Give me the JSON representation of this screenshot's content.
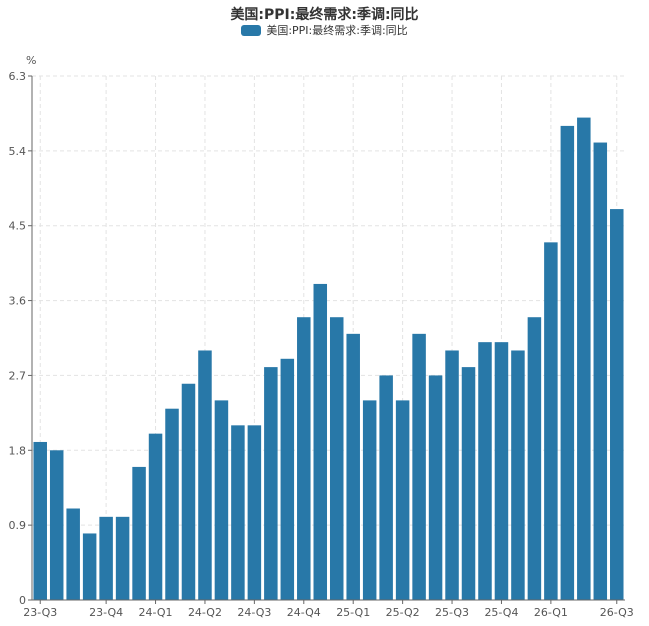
{
  "chart_data": {
    "type": "bar",
    "title": "美国:PPI:最终需求:季调:同比",
    "ylabel": "%",
    "ylim": [
      0,
      6.3
    ],
    "y_ticks": [
      "0",
      "0.9",
      "1.8",
      "2.7",
      "3.6",
      "4.5",
      "5.4",
      "6.3"
    ],
    "x_tick_labels": [
      {
        "index": 0,
        "label": "23-Q3"
      },
      {
        "index": 4,
        "label": "23-Q4"
      },
      {
        "index": 7,
        "label": "24-Q1"
      },
      {
        "index": 10,
        "label": "24-Q2"
      },
      {
        "index": 13,
        "label": "24-Q3"
      },
      {
        "index": 16,
        "label": "24-Q4"
      },
      {
        "index": 19,
        "label": "25-Q1"
      },
      {
        "index": 22,
        "label": "25-Q2"
      },
      {
        "index": 25,
        "label": "25-Q3"
      },
      {
        "index": 28,
        "label": "25-Q4"
      },
      {
        "index": 31,
        "label": "26-Q1"
      },
      {
        "index": 35,
        "label": "26-Q3"
      }
    ],
    "grid": true,
    "legend_position": "top-center",
    "series": [
      {
        "name": "美国:PPI:最终需求:季调:同比",
        "color": "#2878a8",
        "values": [
          1.9,
          1.8,
          1.1,
          0.8,
          1.0,
          1.0,
          1.6,
          2.0,
          2.3,
          2.6,
          3.0,
          2.4,
          2.1,
          2.1,
          2.8,
          2.9,
          3.4,
          3.8,
          3.4,
          3.2,
          2.4,
          2.7,
          2.4,
          3.2,
          2.7,
          3.0,
          2.8,
          3.1,
          3.1,
          3.0,
          3.4,
          4.3,
          5.7,
          5.8,
          5.5,
          4.7
        ]
      }
    ]
  }
}
